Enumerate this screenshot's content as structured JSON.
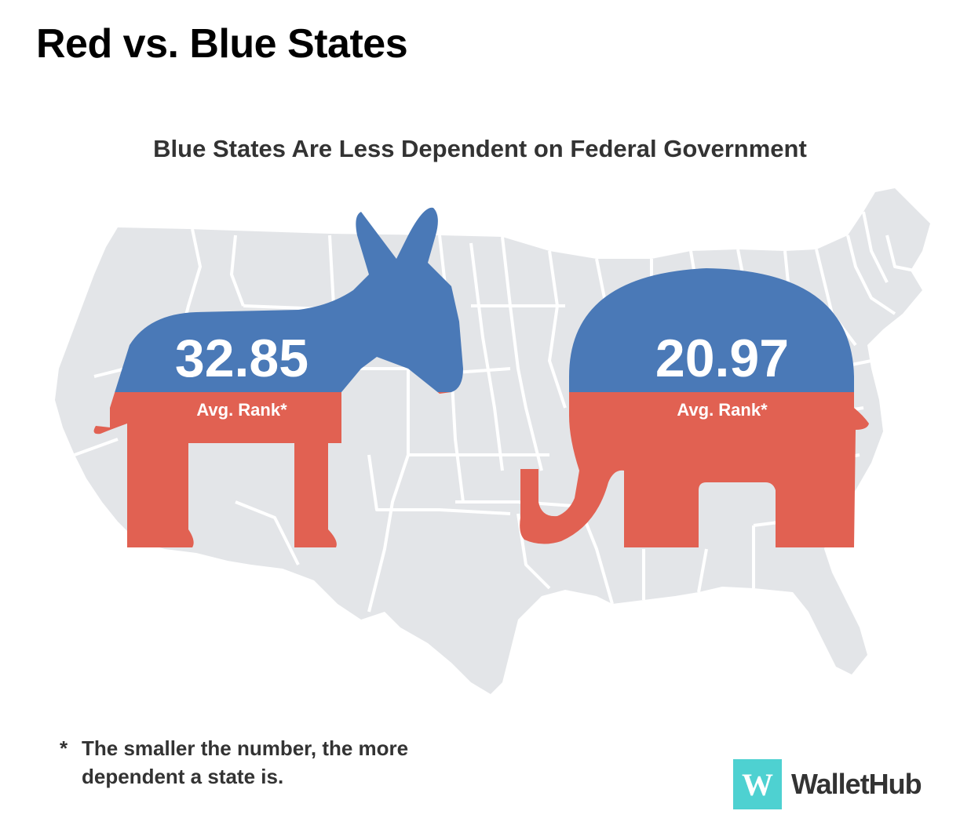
{
  "title": "Red vs. Blue States",
  "subtitle": "Blue States Are Less Dependent on Federal Government",
  "colors": {
    "blue": "#4a79b7",
    "red": "#e16152",
    "map": "#e3e5e8",
    "brand": "#4ed1d1"
  },
  "blue_states": {
    "symbol": "donkey",
    "value": "32.85",
    "label": "Avg. Rank*"
  },
  "red_states": {
    "symbol": "elephant",
    "value": "20.97",
    "label": "Avg. Rank*"
  },
  "footnote": {
    "line1": "The smaller the number, the more",
    "line2": "dependent a state is.",
    "marker": "*"
  },
  "brand": {
    "mark": "W",
    "name": "WalletHub"
  }
}
